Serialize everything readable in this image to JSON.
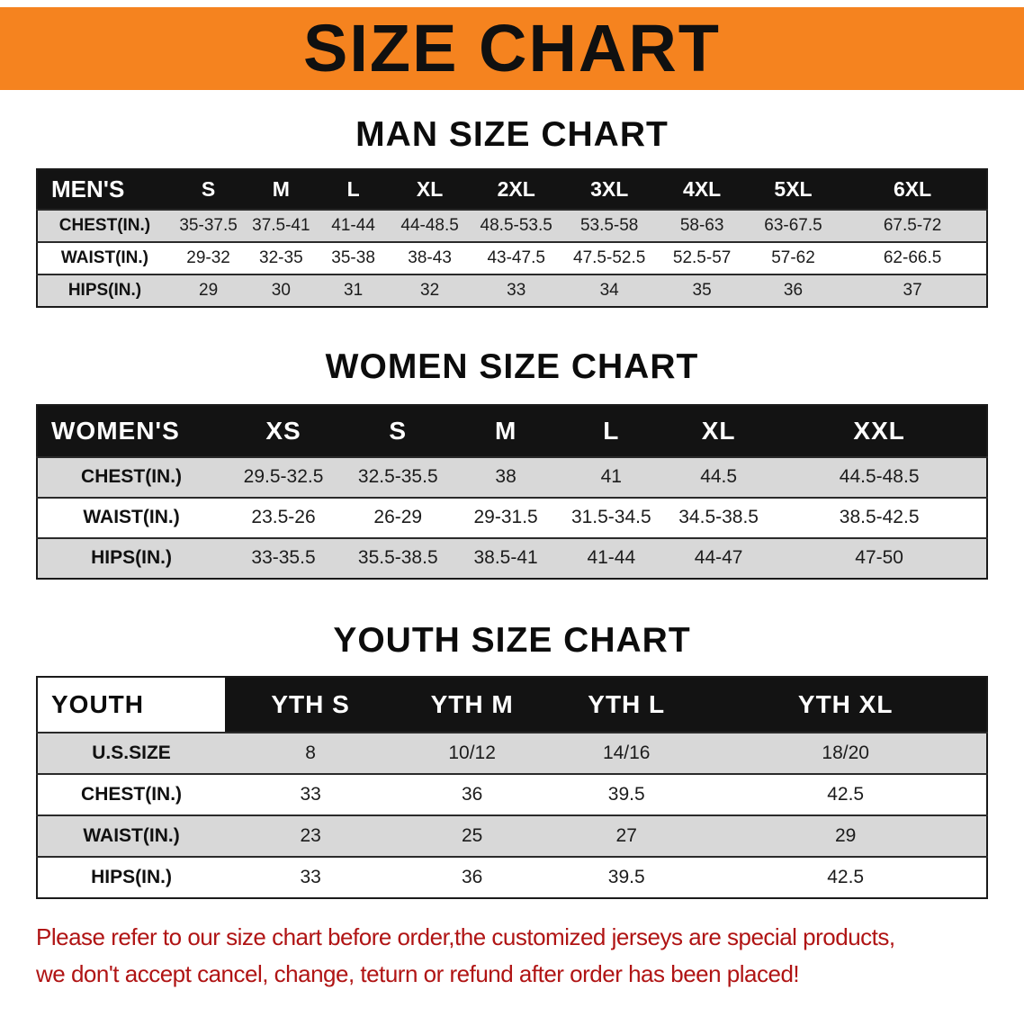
{
  "banner": {
    "title": "SIZE CHART"
  },
  "colors": {
    "banner_bg": "#f5831f",
    "header_bg": "#131313",
    "row_alt_bg": "#d8d8d8",
    "disclaimer_red": "#b01414"
  },
  "chart_data": [
    {
      "type": "table",
      "title": "MAN SIZE CHART",
      "header": [
        "MEN'S",
        "S",
        "M",
        "L",
        "XL",
        "2XL",
        "3XL",
        "4XL",
        "5XL",
        "6XL"
      ],
      "rows": [
        [
          "CHEST(IN.)",
          "35-37.5",
          "37.5-41",
          "41-44",
          "44-48.5",
          "48.5-53.5",
          "53.5-58",
          "58-63",
          "63-67.5",
          "67.5-72"
        ],
        [
          "WAIST(IN.)",
          "29-32",
          "32-35",
          "35-38",
          "38-43",
          "43-47.5",
          "47.5-52.5",
          "52.5-57",
          "57-62",
          "62-66.5"
        ],
        [
          "HIPS(IN.)",
          "29",
          "30",
          "31",
          "32",
          "33",
          "34",
          "35",
          "36",
          "37"
        ]
      ]
    },
    {
      "type": "table",
      "title": "WOMEN SIZE CHART",
      "header": [
        "WOMEN'S",
        "XS",
        "S",
        "M",
        "L",
        "XL",
        "XXL"
      ],
      "rows": [
        [
          "CHEST(IN.)",
          "29.5-32.5",
          "32.5-35.5",
          "38",
          "41",
          "44.5",
          "44.5-48.5"
        ],
        [
          "WAIST(IN.)",
          "23.5-26",
          "26-29",
          "29-31.5",
          "31.5-34.5",
          "34.5-38.5",
          "38.5-42.5"
        ],
        [
          "HIPS(IN.)",
          "33-35.5",
          "35.5-38.5",
          "38.5-41",
          "41-44",
          "44-47",
          "47-50"
        ]
      ]
    },
    {
      "type": "table",
      "title": "YOUTH SIZE CHART",
      "header": [
        "YOUTH",
        "YTH S",
        "YTH M",
        "YTH L",
        "YTH XL"
      ],
      "rows": [
        [
          "U.S.SIZE",
          "8",
          "10/12",
          "14/16",
          "18/20"
        ],
        [
          "CHEST(IN.)",
          "33",
          "36",
          "39.5",
          "42.5"
        ],
        [
          "WAIST(IN.)",
          "23",
          "25",
          "27",
          "29"
        ],
        [
          "HIPS(IN.)",
          "33",
          "36",
          "39.5",
          "42.5"
        ]
      ]
    }
  ],
  "disclaimer": {
    "line1": "Please refer to our size chart before order,the customized jerseys are special products,",
    "line2": "we don't accept cancel, change, teturn or refund after order has been placed!"
  }
}
